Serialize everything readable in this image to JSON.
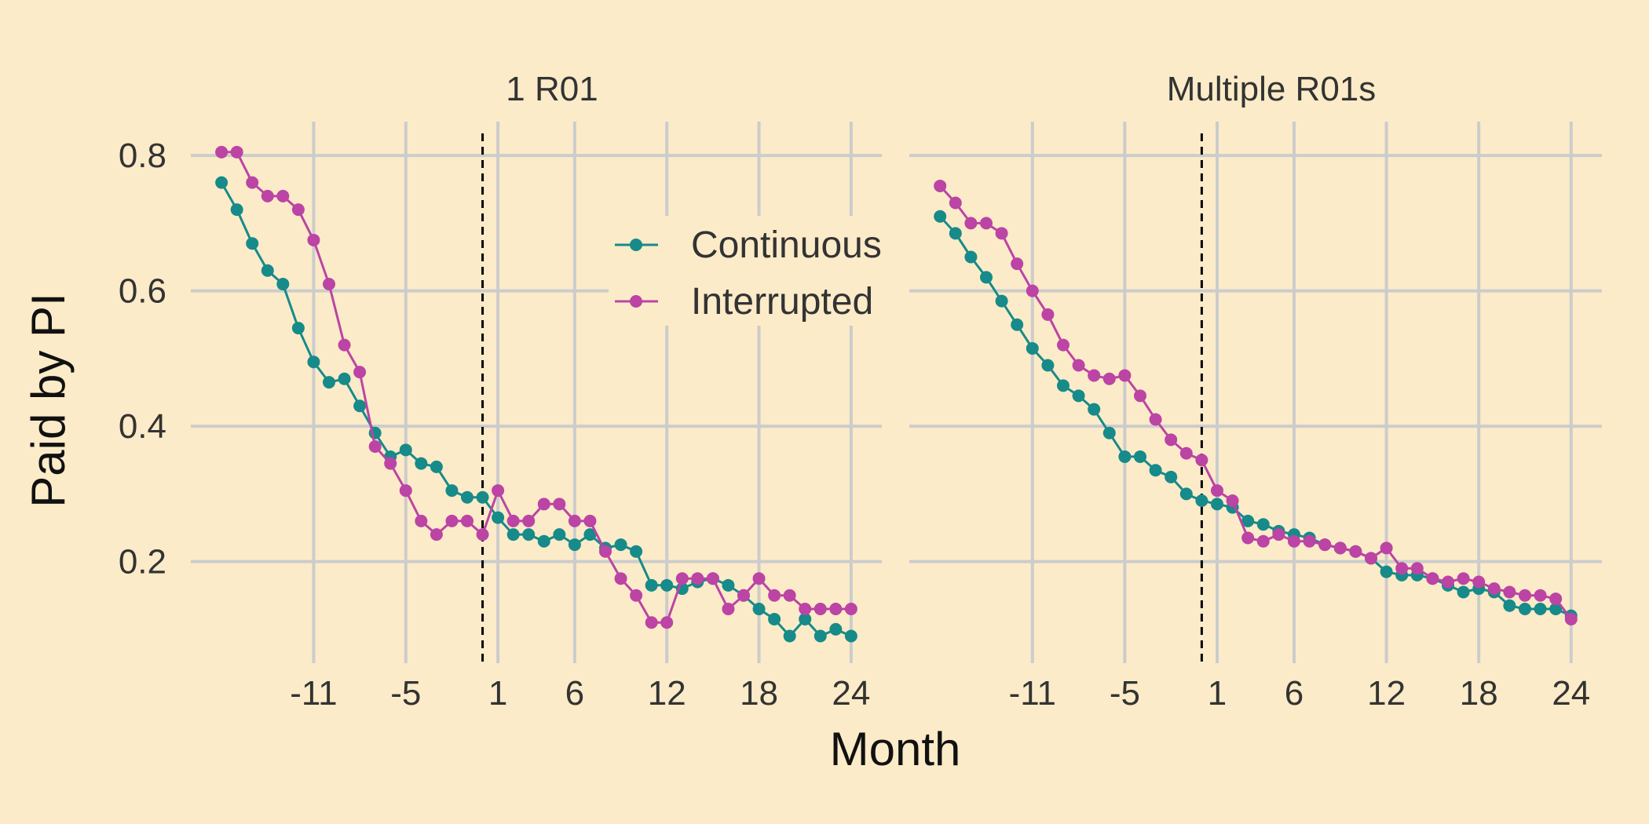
{
  "colors": {
    "background": "#fcebc8",
    "grid": "#cccccc",
    "continuous": "#178a8a",
    "interrupted": "#bb44a5",
    "event_line": "#000000"
  },
  "chart_data": {
    "type": "line",
    "xlabel": "Month",
    "ylabel": "Paid by PI",
    "legend": {
      "position": "top-right of left panel",
      "entries": [
        "Continuous",
        "Interrupted"
      ]
    },
    "grid": true,
    "event_line_x": 0,
    "x_ticks": [
      -11,
      -5,
      1,
      6,
      12,
      18,
      24
    ],
    "x_tick_labels": [
      "-11",
      "-5",
      "1",
      "6",
      "12",
      "18",
      "24"
    ],
    "y_ticks": [
      0.2,
      0.4,
      0.6,
      0.8
    ],
    "y_tick_labels": [
      "0.2",
      "0.4",
      "0.6",
      "0.8"
    ],
    "xlim": [
      -19,
      26
    ],
    "ylim": [
      0.05,
      0.85
    ],
    "x": [
      -17,
      -16,
      -15,
      -14,
      -13,
      -12,
      -11,
      -10,
      -9,
      -8,
      -7,
      -6,
      -5,
      -4,
      -3,
      -2,
      -1,
      0,
      1,
      2,
      3,
      4,
      5,
      6,
      7,
      8,
      9,
      10,
      11,
      12,
      13,
      14,
      15,
      16,
      17,
      18,
      19,
      20,
      21,
      22,
      23,
      24
    ],
    "panels": [
      {
        "title": "1 R01",
        "series": [
          {
            "name": "Continuous",
            "values": [
              0.76,
              0.72,
              0.67,
              0.63,
              0.61,
              0.545,
              0.495,
              0.465,
              0.47,
              0.43,
              0.39,
              0.355,
              0.365,
              0.345,
              0.34,
              0.305,
              0.295,
              0.295,
              0.265,
              0.24,
              0.24,
              0.23,
              0.24,
              0.225,
              0.24,
              0.22,
              0.225,
              0.215,
              0.165,
              0.165,
              0.16,
              0.17,
              0.175,
              0.165,
              0.15,
              0.13,
              0.115,
              0.09,
              0.115,
              0.09,
              0.1,
              0.09
            ]
          },
          {
            "name": "Interrupted",
            "values": [
              0.805,
              0.805,
              0.76,
              0.74,
              0.74,
              0.72,
              0.675,
              0.61,
              0.52,
              0.48,
              0.37,
              0.345,
              0.305,
              0.26,
              0.24,
              0.26,
              0.26,
              0.24,
              0.305,
              0.26,
              0.26,
              0.285,
              0.285,
              0.26,
              0.26,
              0.215,
              0.175,
              0.15,
              0.11,
              0.11,
              0.175,
              0.175,
              0.175,
              0.13,
              0.15,
              0.175,
              0.15,
              0.15,
              0.13,
              0.13,
              0.13,
              0.13
            ]
          }
        ]
      },
      {
        "title": "Multiple R01s",
        "series": [
          {
            "name": "Continuous",
            "values": [
              0.71,
              0.685,
              0.65,
              0.62,
              0.585,
              0.55,
              0.515,
              0.49,
              0.46,
              0.445,
              0.425,
              0.39,
              0.355,
              0.355,
              0.335,
              0.325,
              0.3,
              0.29,
              0.285,
              0.28,
              0.26,
              0.255,
              0.245,
              0.24,
              0.235,
              0.225,
              0.22,
              0.215,
              0.205,
              0.185,
              0.18,
              0.18,
              0.175,
              0.165,
              0.155,
              0.16,
              0.155,
              0.135,
              0.13,
              0.13,
              0.13,
              0.12
            ]
          },
          {
            "name": "Interrupted",
            "values": [
              0.755,
              0.73,
              0.7,
              0.7,
              0.685,
              0.64,
              0.6,
              0.565,
              0.52,
              0.49,
              0.475,
              0.47,
              0.475,
              0.445,
              0.41,
              0.38,
              0.36,
              0.35,
              0.305,
              0.29,
              0.235,
              0.23,
              0.24,
              0.23,
              0.23,
              0.225,
              0.22,
              0.215,
              0.205,
              0.22,
              0.19,
              0.19,
              0.175,
              0.17,
              0.175,
              0.17,
              0.16,
              0.155,
              0.15,
              0.15,
              0.145,
              0.115
            ]
          }
        ]
      }
    ]
  }
}
